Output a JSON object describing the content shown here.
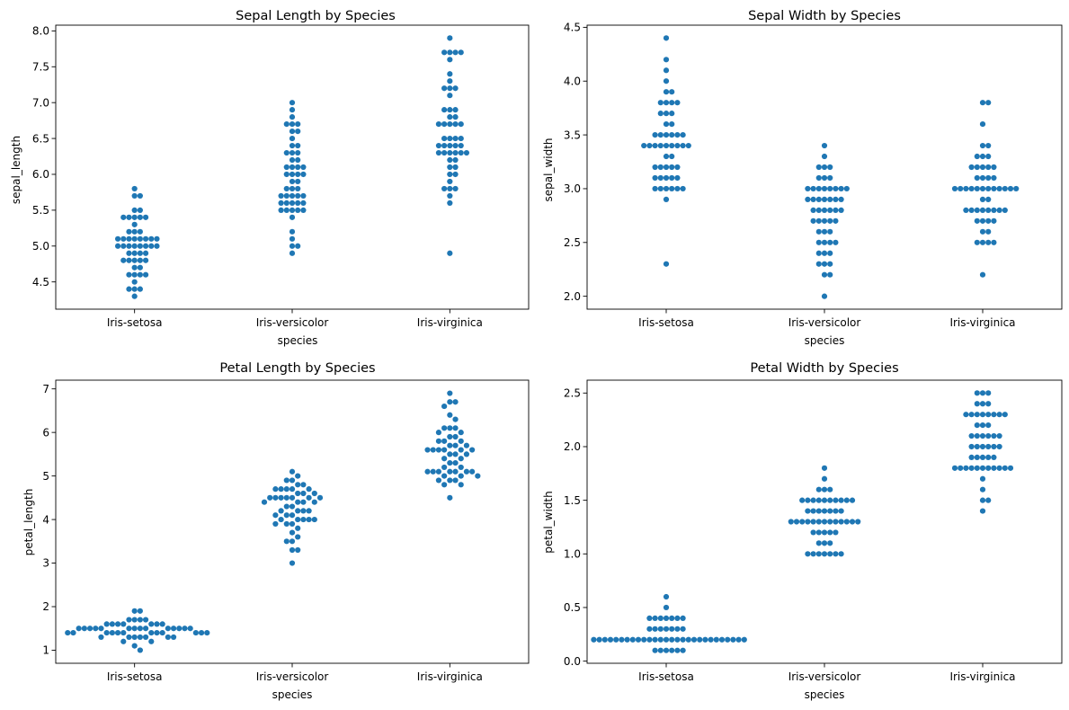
{
  "figure": {
    "background": "#ffffff",
    "point_color": "#1f77b4"
  },
  "chart_data": [
    {
      "type": "scatter",
      "style": "swarm",
      "title": "Sepal Length by Species",
      "xlabel": "species",
      "ylabel": "sepal_length",
      "categories": [
        "Iris-setosa",
        "Iris-versicolor",
        "Iris-virginica"
      ],
      "ylim": [
        4.12,
        8.08
      ],
      "yticks": [
        4.5,
        5.0,
        5.5,
        6.0,
        6.5,
        7.0,
        7.5,
        8.0
      ],
      "ytick_labels": [
        "4.5",
        "5.0",
        "5.5",
        "6.0",
        "6.5",
        "7.0",
        "7.5",
        "8.0"
      ],
      "grid": false,
      "series": [
        {
          "category": "Iris-setosa",
          "values": [
            5.1,
            4.9,
            4.7,
            4.6,
            5.0,
            5.4,
            4.6,
            5.0,
            4.4,
            4.9,
            5.4,
            4.8,
            4.8,
            4.3,
            5.8,
            5.7,
            5.4,
            5.1,
            5.7,
            5.1,
            5.4,
            5.1,
            4.6,
            5.1,
            4.8,
            5.0,
            5.0,
            5.2,
            5.2,
            4.7,
            4.8,
            5.4,
            5.2,
            5.5,
            4.9,
            5.0,
            5.5,
            4.9,
            4.4,
            5.1,
            5.0,
            4.5,
            4.4,
            5.0,
            5.1,
            4.8,
            5.1,
            4.6,
            5.3,
            5.0
          ]
        },
        {
          "category": "Iris-versicolor",
          "values": [
            7.0,
            6.4,
            6.9,
            5.5,
            6.5,
            5.7,
            6.3,
            4.9,
            6.6,
            5.2,
            5.0,
            5.9,
            6.0,
            6.1,
            5.6,
            6.7,
            5.6,
            5.8,
            6.2,
            5.6,
            5.9,
            6.1,
            6.3,
            6.1,
            6.4,
            6.6,
            6.8,
            6.7,
            6.0,
            5.7,
            5.5,
            5.5,
            5.8,
            6.0,
            5.4,
            6.0,
            6.7,
            6.3,
            5.6,
            5.5,
            5.5,
            6.1,
            5.8,
            5.0,
            5.6,
            5.7,
            5.7,
            6.2,
            5.1,
            5.7
          ]
        },
        {
          "category": "Iris-virginica",
          "values": [
            6.3,
            5.8,
            7.1,
            6.3,
            6.5,
            7.6,
            4.9,
            7.3,
            6.7,
            7.2,
            6.5,
            6.4,
            6.8,
            5.7,
            5.8,
            6.4,
            6.5,
            7.7,
            7.7,
            6.0,
            6.9,
            5.6,
            7.7,
            6.3,
            6.7,
            7.2,
            6.2,
            6.1,
            6.4,
            7.2,
            7.4,
            7.9,
            6.4,
            6.3,
            6.1,
            7.7,
            6.3,
            6.4,
            6.0,
            6.9,
            6.7,
            6.9,
            5.8,
            6.8,
            6.7,
            6.7,
            6.3,
            6.5,
            6.2,
            5.9
          ]
        }
      ]
    },
    {
      "type": "scatter",
      "style": "swarm",
      "title": "Sepal Width by Species",
      "xlabel": "species",
      "ylabel": "sepal_width",
      "categories": [
        "Iris-setosa",
        "Iris-versicolor",
        "Iris-virginica"
      ],
      "ylim": [
        1.88,
        4.52
      ],
      "yticks": [
        2.0,
        2.5,
        3.0,
        3.5,
        4.0,
        4.5
      ],
      "ytick_labels": [
        "2.0",
        "2.5",
        "3.0",
        "3.5",
        "4.0",
        "4.5"
      ],
      "grid": false,
      "series": [
        {
          "category": "Iris-setosa",
          "values": [
            3.5,
            3.0,
            3.2,
            3.1,
            3.6,
            3.9,
            3.4,
            3.4,
            2.9,
            3.1,
            3.7,
            3.4,
            3.0,
            3.0,
            4.0,
            4.4,
            3.9,
            3.5,
            3.8,
            3.8,
            3.4,
            3.7,
            3.6,
            3.3,
            3.4,
            3.0,
            3.4,
            3.5,
            3.4,
            3.2,
            3.1,
            3.4,
            4.1,
            4.2,
            3.1,
            3.2,
            3.5,
            3.1,
            3.0,
            3.4,
            3.5,
            2.3,
            3.2,
            3.5,
            3.8,
            3.0,
            3.8,
            3.2,
            3.7,
            3.3
          ]
        },
        {
          "category": "Iris-versicolor",
          "values": [
            3.2,
            3.2,
            3.1,
            2.3,
            2.8,
            2.8,
            3.3,
            2.4,
            2.9,
            2.7,
            2.0,
            3.0,
            2.2,
            2.9,
            2.9,
            3.1,
            3.0,
            2.7,
            2.2,
            2.5,
            3.2,
            2.8,
            2.5,
            2.8,
            2.9,
            3.0,
            2.8,
            3.0,
            2.9,
            2.6,
            2.4,
            2.4,
            2.7,
            2.7,
            3.0,
            3.4,
            3.1,
            2.3,
            3.0,
            2.5,
            2.6,
            3.0,
            2.6,
            2.3,
            2.7,
            3.0,
            2.9,
            2.9,
            2.5,
            2.8
          ]
        },
        {
          "category": "Iris-virginica",
          "values": [
            3.3,
            2.7,
            3.0,
            2.9,
            3.0,
            3.0,
            2.5,
            2.9,
            2.5,
            3.6,
            3.2,
            2.7,
            3.0,
            2.5,
            2.8,
            3.2,
            3.0,
            3.8,
            2.6,
            2.2,
            3.2,
            2.8,
            2.8,
            2.7,
            3.3,
            3.2,
            2.8,
            3.0,
            2.8,
            3.0,
            2.8,
            3.8,
            2.8,
            2.8,
            2.6,
            3.0,
            3.4,
            3.1,
            3.0,
            3.1,
            3.1,
            3.1,
            2.7,
            3.2,
            3.3,
            3.0,
            2.5,
            3.0,
            3.4,
            3.0
          ]
        }
      ]
    },
    {
      "type": "scatter",
      "style": "swarm",
      "title": "Petal Length by Species",
      "xlabel": "species",
      "ylabel": "petal_length",
      "categories": [
        "Iris-setosa",
        "Iris-versicolor",
        "Iris-virginica"
      ],
      "ylim": [
        0.7,
        7.2
      ],
      "yticks": [
        1,
        2,
        3,
        4,
        5,
        6,
        7
      ],
      "ytick_labels": [
        "1",
        "2",
        "3",
        "4",
        "5",
        "6",
        "7"
      ],
      "grid": false,
      "series": [
        {
          "category": "Iris-setosa",
          "values": [
            1.4,
            1.4,
            1.3,
            1.5,
            1.4,
            1.7,
            1.4,
            1.5,
            1.4,
            1.5,
            1.5,
            1.6,
            1.4,
            1.1,
            1.2,
            1.5,
            1.3,
            1.4,
            1.7,
            1.5,
            1.7,
            1.5,
            1.0,
            1.7,
            1.9,
            1.6,
            1.6,
            1.5,
            1.4,
            1.6,
            1.6,
            1.5,
            1.5,
            1.4,
            1.5,
            1.2,
            1.3,
            1.5,
            1.3,
            1.5,
            1.3,
            1.3,
            1.3,
            1.6,
            1.9,
            1.4,
            1.6,
            1.4,
            1.5,
            1.4
          ]
        },
        {
          "category": "Iris-versicolor",
          "values": [
            4.7,
            4.5,
            4.9,
            4.0,
            4.6,
            4.5,
            4.7,
            3.3,
            4.6,
            3.9,
            3.5,
            4.2,
            4.0,
            4.7,
            3.6,
            4.4,
            4.5,
            4.1,
            4.5,
            3.9,
            4.8,
            4.0,
            4.9,
            4.7,
            4.3,
            4.4,
            4.8,
            5.0,
            4.5,
            3.5,
            3.8,
            3.7,
            3.9,
            5.1,
            4.5,
            4.5,
            4.7,
            4.4,
            4.1,
            4.0,
            4.4,
            4.6,
            4.0,
            3.3,
            4.2,
            4.2,
            4.2,
            4.3,
            3.0,
            4.1
          ]
        },
        {
          "category": "Iris-virginica",
          "values": [
            6.0,
            5.1,
            5.9,
            5.6,
            5.8,
            6.6,
            4.5,
            6.3,
            5.8,
            6.1,
            5.1,
            5.3,
            5.5,
            5.0,
            5.1,
            5.3,
            5.5,
            6.7,
            6.9,
            5.0,
            5.7,
            4.9,
            6.7,
            4.9,
            5.7,
            6.0,
            4.8,
            4.9,
            5.6,
            5.8,
            6.1,
            6.4,
            5.6,
            5.1,
            5.6,
            6.1,
            5.6,
            5.5,
            4.8,
            5.4,
            5.6,
            5.1,
            5.1,
            5.9,
            5.7,
            5.2,
            5.0,
            5.2,
            5.4,
            5.1
          ]
        }
      ]
    },
    {
      "type": "scatter",
      "style": "swarm",
      "title": "Petal Width by Species",
      "xlabel": "species",
      "ylabel": "petal_width",
      "categories": [
        "Iris-setosa",
        "Iris-versicolor",
        "Iris-virginica"
      ],
      "ylim": [
        -0.02,
        2.62
      ],
      "yticks": [
        0.0,
        0.5,
        1.0,
        1.5,
        2.0,
        2.5
      ],
      "ytick_labels": [
        "0.0",
        "0.5",
        "1.0",
        "1.5",
        "2.0",
        "2.5"
      ],
      "grid": false,
      "series": [
        {
          "category": "Iris-setosa",
          "values": [
            0.2,
            0.2,
            0.2,
            0.2,
            0.2,
            0.4,
            0.3,
            0.2,
            0.2,
            0.1,
            0.2,
            0.2,
            0.1,
            0.1,
            0.2,
            0.4,
            0.4,
            0.3,
            0.3,
            0.3,
            0.2,
            0.4,
            0.2,
            0.5,
            0.2,
            0.2,
            0.4,
            0.2,
            0.2,
            0.2,
            0.2,
            0.4,
            0.1,
            0.2,
            0.1,
            0.2,
            0.2,
            0.1,
            0.2,
            0.2,
            0.3,
            0.3,
            0.2,
            0.6,
            0.4,
            0.3,
            0.2,
            0.2,
            0.2,
            0.2
          ]
        },
        {
          "category": "Iris-versicolor",
          "values": [
            1.4,
            1.5,
            1.5,
            1.3,
            1.5,
            1.3,
            1.6,
            1.0,
            1.3,
            1.4,
            1.0,
            1.5,
            1.0,
            1.4,
            1.3,
            1.4,
            1.5,
            1.0,
            1.5,
            1.1,
            1.8,
            1.3,
            1.5,
            1.2,
            1.3,
            1.4,
            1.4,
            1.7,
            1.5,
            1.0,
            1.1,
            1.0,
            1.2,
            1.6,
            1.5,
            1.6,
            1.5,
            1.3,
            1.3,
            1.3,
            1.2,
            1.4,
            1.2,
            1.0,
            1.3,
            1.2,
            1.3,
            1.3,
            1.1,
            1.3
          ]
        },
        {
          "category": "Iris-virginica",
          "values": [
            2.5,
            1.9,
            2.1,
            1.8,
            2.2,
            2.1,
            1.7,
            1.8,
            1.8,
            2.5,
            2.0,
            1.9,
            2.1,
            2.0,
            2.4,
            2.3,
            1.8,
            2.2,
            2.3,
            1.5,
            2.3,
            2.0,
            2.0,
            1.8,
            2.1,
            1.8,
            1.8,
            1.8,
            2.1,
            1.6,
            1.9,
            2.0,
            2.2,
            1.5,
            1.4,
            2.3,
            2.4,
            1.8,
            1.8,
            2.1,
            2.4,
            2.3,
            1.9,
            2.3,
            2.5,
            2.3,
            1.9,
            2.0,
            2.3,
            1.8
          ]
        }
      ]
    }
  ]
}
